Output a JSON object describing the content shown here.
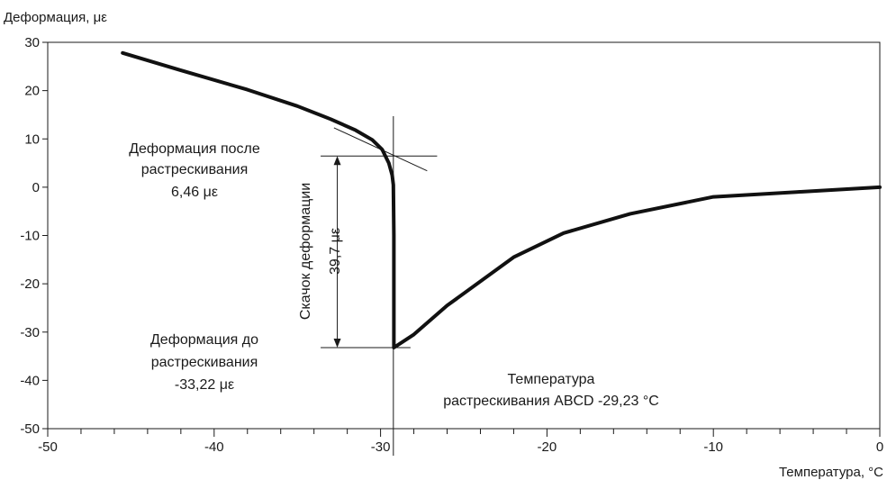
{
  "chart_data": {
    "type": "line",
    "ylabel": "Деформация, με",
    "xlabel": "Температура, °С",
    "xlim": [
      -50,
      0
    ],
    "ylim": [
      -50,
      30
    ],
    "xticks": [
      -50,
      -40,
      -30,
      -20,
      -10,
      0
    ],
    "xtick_labels": [
      "-50",
      "-40",
      "-30",
      "-20",
      "-10",
      "0"
    ],
    "yticks": [
      30,
      20,
      10,
      0,
      -10,
      -20,
      -30,
      -40,
      -50
    ],
    "ytick_labels": [
      "30",
      "20",
      "10",
      "0",
      "-10",
      "-20",
      "-30",
      "-40",
      "-50"
    ],
    "grid": false,
    "series": [
      {
        "x": [
          -45.5,
          -42,
          -38,
          -35,
          -33,
          -31.5,
          -30.5,
          -29.9,
          -29.5,
          -29.3,
          -29.23,
          -29.2,
          -29.2,
          -29.2,
          -28,
          -26,
          -22,
          -19,
          -15,
          -10,
          -5,
          0
        ],
        "y": [
          27.8,
          24.2,
          20.2,
          16.8,
          14.1,
          11.8,
          9.8,
          7.8,
          5.0,
          2.5,
          0.5,
          -10,
          -25,
          -33.22,
          -30.5,
          -24.5,
          -14.5,
          -9.5,
          -5.5,
          -2.0,
          -1.0,
          0.0
        ]
      }
    ],
    "annotations": {
      "after_label": [
        "Деформация после",
        "растрескивания",
        "6,46 με"
      ],
      "before_label": [
        "Деформация до",
        "растрескивания",
        "-33,22 με"
      ],
      "jump_label": "Скачок деформации",
      "jump_value": "39,7 με",
      "crack_temp_label": [
        "Температура",
        "растрескивания ABCD -29,23 °С"
      ]
    },
    "reference_values": {
      "strain_after": 6.46,
      "strain_before": -33.22,
      "crack_temperature": -29.23
    }
  }
}
